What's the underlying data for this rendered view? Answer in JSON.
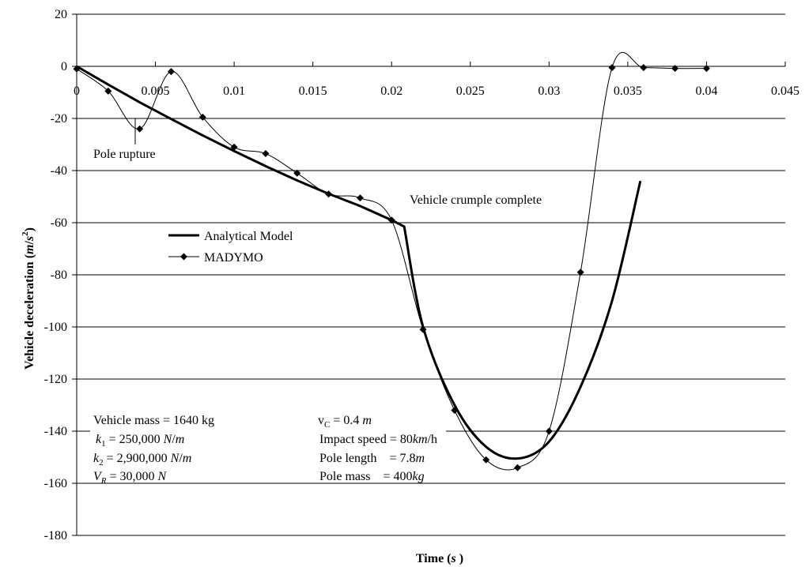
{
  "chart_data": {
    "type": "line",
    "xlabel": "Time (s)",
    "ylabel": "Vehicle deceleration (m/s2)",
    "xlim": [
      0,
      0.045
    ],
    "ylim": [
      -180,
      20
    ],
    "xticks": [
      0,
      0.005,
      0.01,
      0.015,
      0.02,
      0.025,
      0.03,
      0.035,
      0.04,
      0.045
    ],
    "yticks": [
      20,
      0,
      -20,
      -40,
      -60,
      -80,
      -100,
      -120,
      -140,
      -160,
      -180
    ],
    "xtick_labels": [
      "0",
      "0.005",
      "0.01",
      "0.015",
      "0.02",
      "0.025",
      "0.03",
      "0.035",
      "0.04",
      "0.045"
    ],
    "ytick_labels": [
      "20",
      "0",
      "-20",
      "-40",
      "-60",
      "-80",
      "-100",
      "-120",
      "-140",
      "-160",
      "-180"
    ],
    "grid": "horizontal",
    "legend_position": "left-middle",
    "series": [
      {
        "name": "Analytical Model",
        "style": "thick-line",
        "color": "#000000",
        "x": [
          0,
          0.002,
          0.004,
          0.006,
          0.008,
          0.01,
          0.012,
          0.014,
          0.016,
          0.018,
          0.02,
          0.0208,
          0.022,
          0.024,
          0.026,
          0.028,
          0.03,
          0.032,
          0.034,
          0.0358
        ],
        "y": [
          0,
          -7,
          -13.8,
          -20.2,
          -26.5,
          -32.5,
          -38.3,
          -43.8,
          -48.9,
          -53.6,
          -59,
          -61.5,
          -100,
          -130,
          -146,
          -150.5,
          -144,
          -123,
          -90,
          -44
        ]
      },
      {
        "name": "MADYMO",
        "style": "line-diamond",
        "color": "#000000",
        "x": [
          0,
          0.002,
          0.004,
          0.006,
          0.008,
          0.01,
          0.012,
          0.014,
          0.016,
          0.018,
          0.02,
          0.022,
          0.024,
          0.026,
          0.028,
          0.03,
          0.032,
          0.034,
          0.036,
          0.038,
          0.04
        ],
        "y": [
          -1,
          -9.5,
          -24,
          -2,
          -19.5,
          -31,
          -33.5,
          -41,
          -49,
          -50.5,
          -59,
          -101,
          -132,
          -151,
          -154,
          -140,
          -79,
          -0.5,
          -0.5,
          -0.8,
          -0.8
        ]
      }
    ],
    "annotations": {
      "pole_rupture": "Pole rupture",
      "crumple": "Vehicle crumple complete",
      "params": [
        [
          "Vehicle mass = 1640 kg",
          "vC = 0.4 m"
        ],
        [
          "k1 = 250,000 N/m",
          "Impact speed = 80km/h"
        ],
        [
          "k2 = 2,900,000 N/m",
          "Pole length    = 7.8m"
        ],
        [
          "VR = 30,000 N",
          "Pole mass    = 400kg"
        ]
      ]
    }
  }
}
